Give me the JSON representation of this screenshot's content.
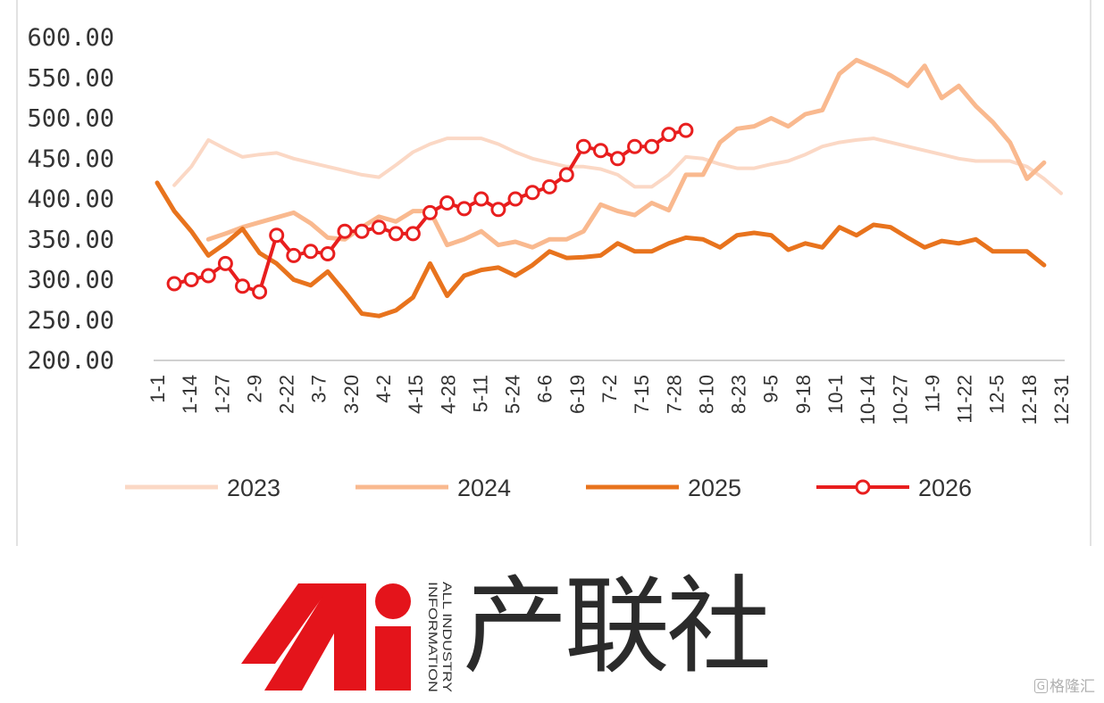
{
  "chart_data": {
    "type": "line",
    "y_ticks": [
      "600.00",
      "550.00",
      "500.00",
      "450.00",
      "400.00",
      "350.00",
      "300.00",
      "250.00",
      "200.00"
    ],
    "ylim": [
      200,
      600
    ],
    "x_tick_labels": [
      "1-1",
      "1-14",
      "1-27",
      "2-9",
      "2-22",
      "3-7",
      "3-20",
      "4-2",
      "4-15",
      "4-28",
      "5-11",
      "5-24",
      "6-6",
      "6-19",
      "7-2",
      "7-15",
      "7-28",
      "8-10",
      "8-23",
      "9-5",
      "9-18",
      "10-1",
      "10-14",
      "10-27",
      "11-9",
      "11-22",
      "12-5",
      "12-18",
      "12-31"
    ],
    "x_positions": 54,
    "legend_position": "bottom",
    "series": [
      {
        "name": "2023",
        "color": "#fbd8c5",
        "marker": false,
        "values": [
          null,
          417,
          440,
          473,
          462,
          452,
          455,
          457,
          450,
          445,
          440,
          435,
          430,
          427,
          442,
          458,
          468,
          475,
          475,
          475,
          468,
          458,
          450,
          445,
          440,
          440,
          437,
          430,
          415,
          415,
          430,
          452,
          450,
          443,
          438,
          438,
          443,
          447,
          455,
          465,
          470,
          473,
          475,
          470,
          465,
          460,
          455,
          450,
          447,
          447,
          447,
          440,
          425,
          407
        ]
      },
      {
        "name": "2024",
        "color": "#f9b98f",
        "marker": false,
        "values": [
          null,
          null,
          null,
          350,
          357,
          365,
          371,
          377,
          383,
          370,
          352,
          350,
          365,
          378,
          372,
          385,
          385,
          343,
          350,
          360,
          343,
          347,
          340,
          350,
          350,
          360,
          393,
          385,
          380,
          395,
          386,
          430,
          430,
          470,
          487,
          490,
          500,
          490,
          505,
          510,
          555,
          572,
          563,
          553,
          540,
          565,
          525,
          540,
          515,
          495,
          470,
          425,
          445
        ]
      },
      {
        "name": "2025",
        "color": "#e8731d",
        "marker": false,
        "values": [
          420,
          385,
          360,
          330,
          345,
          363,
          333,
          320,
          300,
          293,
          310,
          285,
          258,
          255,
          262,
          278,
          320,
          280,
          305,
          312,
          315,
          305,
          318,
          335,
          327,
          328,
          330,
          345,
          335,
          335,
          345,
          352,
          350,
          340,
          355,
          358,
          355,
          337,
          345,
          340,
          365,
          355,
          368,
          365,
          352,
          340,
          348,
          345,
          350,
          335,
          335,
          335,
          318
        ]
      },
      {
        "name": "2026",
        "color": "#e81e1e",
        "marker": true,
        "values": [
          null,
          295,
          300,
          305,
          320,
          292,
          285,
          355,
          330,
          335,
          332,
          360,
          360,
          365,
          357,
          357,
          383,
          395,
          388,
          400,
          387,
          400,
          408,
          415,
          430,
          465,
          460,
          450,
          465,
          465,
          480,
          485
        ]
      }
    ]
  },
  "logo": {
    "brand_name_cn": "产联社",
    "brand_name_en_line1": "ALL INDUSTRY",
    "brand_name_en_line2": "INFORMATION"
  },
  "watermark": {
    "text": "格隆汇",
    "icon_glyph": "G"
  },
  "colors": {
    "brand_red": "#e4141b",
    "axis": "#d0d0d0"
  }
}
